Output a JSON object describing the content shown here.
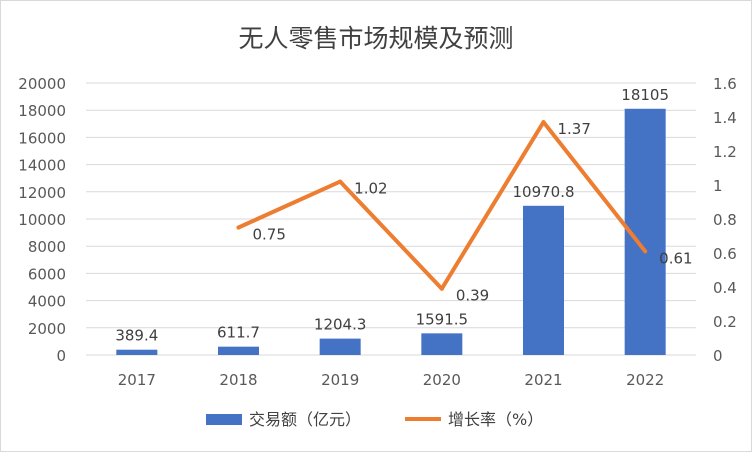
{
  "chart_data": {
    "type": "bar",
    "title": "无人零售市场规模及预测",
    "categories": [
      "2017",
      "2018",
      "2019",
      "2020",
      "2021",
      "2022"
    ],
    "series": [
      {
        "name": "交易额（亿元）",
        "type": "bar",
        "axis": "left",
        "color": "#4472C4",
        "values": [
          389.4,
          611.7,
          1204.3,
          1591.5,
          10970.8,
          18105
        ],
        "labels": [
          "389.4",
          "611.7",
          "1204.3",
          "1591.5",
          "10970.8",
          "18105"
        ]
      },
      {
        "name": "增长率（%）",
        "type": "line",
        "axis": "right",
        "color": "#ED7D31",
        "values": [
          null,
          0.75,
          1.02,
          0.39,
          1.37,
          0.61
        ],
        "labels": [
          "",
          "0.75",
          "1.02",
          "0.39",
          "1.37",
          "0.61"
        ]
      }
    ],
    "y_left": {
      "min": 0,
      "max": 20000,
      "ticks": [
        "0",
        "2000",
        "4000",
        "6000",
        "8000",
        "10000",
        "12000",
        "14000",
        "16000",
        "18000",
        "20000"
      ]
    },
    "y_right": {
      "min": 0,
      "max": 1.6,
      "ticks": [
        "0",
        "0.2",
        "0.4",
        "0.6",
        "0.8",
        "1",
        "1.2",
        "1.4",
        "1.6"
      ]
    },
    "grid": true,
    "legend_position": "bottom"
  }
}
